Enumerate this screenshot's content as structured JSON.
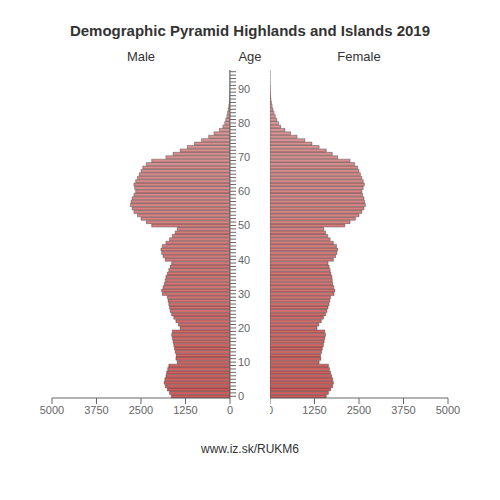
{
  "chart_data": {
    "type": "bar",
    "orientation": "horizontal",
    "title": "Demographic Pyramid Highlands and Islands 2019",
    "ylabel": "Age",
    "annotations": [
      "www.iz.sk/RUKM6"
    ],
    "grid": false,
    "categories": [
      "0",
      null,
      null,
      null,
      null,
      null,
      null,
      null,
      null,
      null,
      "10",
      null,
      null,
      null,
      null,
      null,
      null,
      null,
      null,
      null,
      "20",
      null,
      null,
      null,
      null,
      null,
      null,
      null,
      null,
      null,
      "30",
      null,
      null,
      null,
      null,
      null,
      null,
      null,
      null,
      null,
      "40",
      null,
      null,
      null,
      null,
      null,
      null,
      null,
      null,
      null,
      "50",
      null,
      null,
      null,
      null,
      null,
      null,
      null,
      null,
      null,
      "60",
      null,
      null,
      null,
      null,
      null,
      null,
      null,
      null,
      null,
      "70",
      null,
      null,
      null,
      null,
      null,
      null,
      null,
      null,
      null,
      "80",
      null,
      null,
      null,
      null,
      null,
      null,
      null,
      null,
      null,
      "90",
      null,
      null,
      null,
      null,
      null
    ],
    "xlim": [
      0,
      5000
    ],
    "xticks": [
      0,
      1250,
      2500,
      3750,
      5000
    ],
    "colors": [
      "#cd5c5c",
      "#cd5d5d",
      "#cd5d5d",
      "#cd5e5e",
      "#ce5f5f",
      "#ce6060",
      "#ce6060",
      "#ce6161",
      "#ce6262",
      "#ce6262",
      "#ce6363",
      "#cf6464",
      "#cf6565",
      "#cf6565",
      "#cf6666",
      "#cf6767",
      "#cf6767",
      "#cf6868",
      "#cf6969",
      "#d06a6a",
      "#d06a6a",
      "#d06b6b",
      "#d06c6c",
      "#d06c6c",
      "#d06d6d",
      "#d06e6e",
      "#d16f6f",
      "#d16f6f",
      "#d17070",
      "#d17171",
      "#d17171",
      "#d17272",
      "#d17373",
      "#d27474",
      "#d27474",
      "#d27575",
      "#d27676",
      "#d27676",
      "#d27777",
      "#d27878",
      "#d27979",
      "#d37979",
      "#d37a7a",
      "#d37b7b",
      "#d37b7b",
      "#d37c7c",
      "#d37d7d",
      "#d37e7e",
      "#d47e7e",
      "#d47f7f",
      "#d48080",
      "#d48181",
      "#d48181",
      "#d48282",
      "#d48383",
      "#d58383",
      "#d58484",
      "#d58585",
      "#d58686",
      "#d58686",
      "#d58787",
      "#d58888",
      "#d58888",
      "#d68989",
      "#d68a8a",
      "#d68b8b",
      "#d68b8b",
      "#d68c8c",
      "#d68d8d",
      "#d68d8d",
      "#d78e8e",
      "#d78f8f",
      "#d79090",
      "#d79090",
      "#d79191",
      "#d79292",
      "#d79292",
      "#d89393",
      "#d89494",
      "#d89595",
      "#d89595",
      "#d89696",
      "#d89797",
      "#d89797",
      "#d89898",
      "#d99999",
      "#d99a9a",
      "#d99a9a",
      "#d99b9b",
      "#d99c9c",
      "#d99c9c",
      "#d99d9d",
      "#da9e9e",
      "#da9f9f",
      "#da9f9f",
      "#daa0a0"
    ],
    "series": [
      {
        "name": "Male",
        "values": [
          1650,
          1700,
          1760,
          1820,
          1850,
          1830,
          1800,
          1780,
          1750,
          1720,
          1480,
          1520,
          1510,
          1540,
          1560,
          1580,
          1600,
          1620,
          1640,
          1620,
          1400,
          1450,
          1520,
          1580,
          1640,
          1680,
          1700,
          1720,
          1740,
          1760,
          1900,
          1920,
          1880,
          1840,
          1820,
          1800,
          1760,
          1720,
          1680,
          1640,
          1820,
          1880,
          1920,
          1940,
          1900,
          1800,
          1700,
          1620,
          1540,
          1480,
          2200,
          2350,
          2500,
          2600,
          2700,
          2750,
          2800,
          2780,
          2750,
          2700,
          2650,
          2680,
          2700,
          2650,
          2600,
          2550,
          2500,
          2450,
          2350,
          2200,
          1800,
          1600,
          1400,
          1200,
          1000,
          800,
          600,
          450,
          300,
          200,
          150,
          120,
          90,
          70,
          50,
          35,
          20,
          15,
          10,
          7,
          5,
          3,
          2,
          1,
          1,
          1
        ]
      },
      {
        "name": "Female",
        "values": [
          1580,
          1640,
          1700,
          1760,
          1780,
          1760,
          1730,
          1700,
          1670,
          1640,
          1380,
          1430,
          1420,
          1450,
          1470,
          1500,
          1520,
          1540,
          1560,
          1540,
          1320,
          1370,
          1440,
          1500,
          1560,
          1600,
          1630,
          1660,
          1680,
          1700,
          1800,
          1820,
          1790,
          1760,
          1750,
          1740,
          1710,
          1690,
          1660,
          1630,
          1780,
          1840,
          1880,
          1900,
          1870,
          1780,
          1690,
          1620,
          1560,
          1510,
          2100,
          2250,
          2400,
          2500,
          2580,
          2640,
          2680,
          2660,
          2640,
          2600,
          2580,
          2620,
          2650,
          2620,
          2580,
          2540,
          2500,
          2460,
          2380,
          2250,
          1900,
          1750,
          1580,
          1380,
          1180,
          980,
          760,
          580,
          420,
          300,
          240,
          190,
          150,
          115,
          85,
          60,
          40,
          28,
          18,
          12,
          8,
          5,
          3,
          2,
          1,
          1
        ]
      }
    ]
  }
}
